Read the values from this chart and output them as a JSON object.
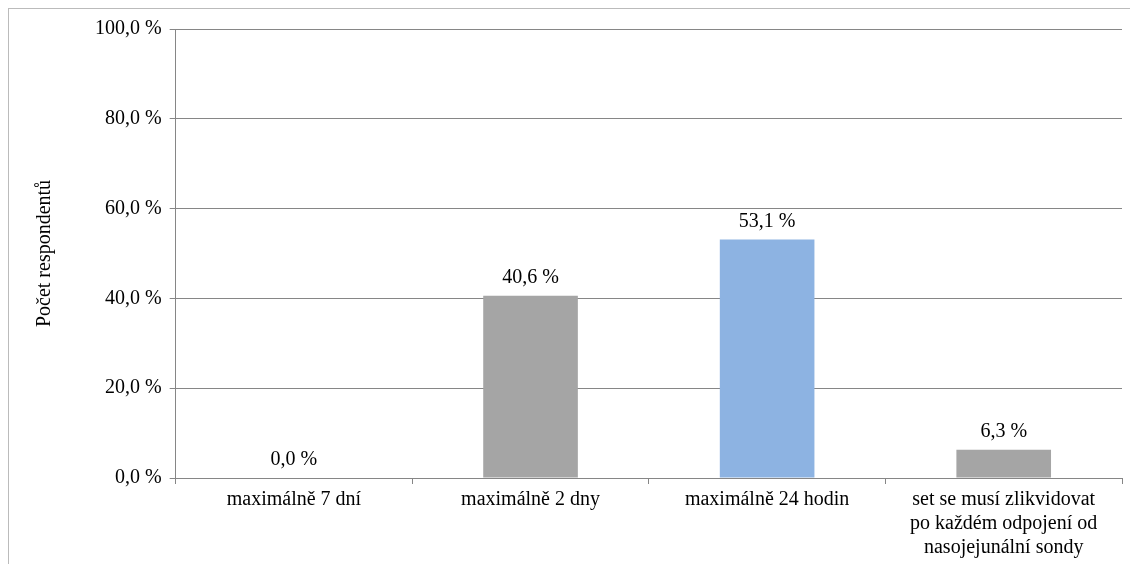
{
  "chart_data": {
    "type": "bar",
    "ylabel": "Počet respondentů",
    "categories": [
      "maximálně 7 dní",
      "maximálně 2 dny",
      "maximálně 24 hodin",
      "set se musí zlikvidovat po každém odpojení od nasojejunální sondy"
    ],
    "values": [
      0.0,
      40.6,
      53.1,
      6.3
    ],
    "colors": [
      "#a5a5a5",
      "#a5a5a5",
      "#8db3e2",
      "#a5a5a5"
    ],
    "value_labels": [
      "0,0 %",
      "40,6 %",
      "53,1 %",
      "6,3 %"
    ],
    "ylim": [
      0,
      100
    ],
    "yticks": [
      {
        "value": 0,
        "label": "0,0 %"
      },
      {
        "value": 20,
        "label": "20,0 %"
      },
      {
        "value": 40,
        "label": "40,0 %"
      },
      {
        "value": 60,
        "label": "60,0 %"
      },
      {
        "value": 80,
        "label": "80,0 %"
      },
      {
        "value": 100,
        "label": "100,0 %"
      }
    ],
    "grid": "y",
    "legend": false
  }
}
